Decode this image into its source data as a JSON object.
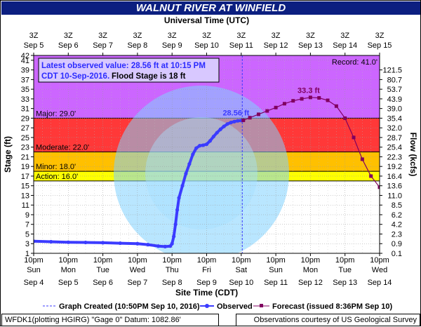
{
  "header": {
    "title": "WALNUT RIVER AT WINFIELD"
  },
  "chart_data": {
    "type": "line",
    "top_axis": {
      "title": "Universal Time (UTC)",
      "ticks": [
        {
          "day": 5,
          "l1": "3Z",
          "l2": "Sep  5"
        },
        {
          "day": 6,
          "l1": "3Z",
          "l2": "Sep  6"
        },
        {
          "day": 7,
          "l1": "3Z",
          "l2": "Sep  7"
        },
        {
          "day": 8,
          "l1": "3Z",
          "l2": "Sep  8"
        },
        {
          "day": 9,
          "l1": "3Z",
          "l2": "Sep  9"
        },
        {
          "day": 10,
          "l1": "3Z",
          "l2": "Sep 10"
        },
        {
          "day": 11,
          "l1": "3Z",
          "l2": "Sep 11"
        },
        {
          "day": 12,
          "l1": "3Z",
          "l2": "Sep 12"
        },
        {
          "day": 13,
          "l1": "3Z",
          "l2": "Sep 13"
        },
        {
          "day": 14,
          "l1": "3Z",
          "l2": "Sep 14"
        },
        {
          "day": 15,
          "l1": "3Z",
          "l2": "Sep 15"
        }
      ]
    },
    "bottom_axis": {
      "title": "Site Time (CDT)",
      "ticks": [
        {
          "day": 5,
          "l1": "10pm",
          "l2": "Sun",
          "l3": "Sep 4"
        },
        {
          "day": 6,
          "l1": "10pm",
          "l2": "Mon",
          "l3": "Sep 5"
        },
        {
          "day": 7,
          "l1": "10pm",
          "l2": "Tue",
          "l3": "Sep 6"
        },
        {
          "day": 8,
          "l1": "10pm",
          "l2": "Wed",
          "l3": "Sep 7"
        },
        {
          "day": 9,
          "l1": "10pm",
          "l2": "Thu",
          "l3": "Sep 8"
        },
        {
          "day": 10,
          "l1": "10pm",
          "l2": "Fri",
          "l3": "Sep 9"
        },
        {
          "day": 11,
          "l1": "10pm",
          "l2": "Sat",
          "l3": "Sep 10"
        },
        {
          "day": 12,
          "l1": "10pm",
          "l2": "Sun",
          "l3": "Sep 11"
        },
        {
          "day": 13,
          "l1": "10pm",
          "l2": "Mon",
          "l3": "Sep 12"
        },
        {
          "day": 14,
          "l1": "10pm",
          "l2": "Tue",
          "l3": "Sep 13"
        },
        {
          "day": 15,
          "l1": "10pm",
          "l2": "Wed",
          "l3": "Sep 14"
        }
      ]
    },
    "x_range": [
      5,
      15
    ],
    "left_axis": {
      "title": "Stage (ft)",
      "range": [
        1,
        42
      ],
      "ticks": [
        1,
        3,
        5,
        7,
        9,
        11,
        13,
        15,
        17,
        19,
        21,
        23,
        25,
        27,
        29,
        31,
        33,
        35,
        37,
        39,
        41,
        42
      ]
    },
    "right_axis": {
      "title": "Flow (kcfs)",
      "ticks": [
        {
          "stage": 1,
          "label": "0.1"
        },
        {
          "stage": 3,
          "label": "0.9"
        },
        {
          "stage": 5,
          "label": "2.3"
        },
        {
          "stage": 7,
          "label": "4.2"
        },
        {
          "stage": 9,
          "label": "6.2"
        },
        {
          "stage": 11,
          "label": "8.5"
        },
        {
          "stage": 13,
          "label": "11.0"
        },
        {
          "stage": 15,
          "label": "13.6"
        },
        {
          "stage": 17,
          "label": "16.4"
        },
        {
          "stage": 19,
          "label": "19.2"
        },
        {
          "stage": 21,
          "label": "22.3"
        },
        {
          "stage": 23,
          "label": "25.4"
        },
        {
          "stage": 25,
          "label": "28.7"
        },
        {
          "stage": 27,
          "label": "32.0"
        },
        {
          "stage": 29,
          "label": "35.4"
        },
        {
          "stage": 31,
          "label": "39.0"
        },
        {
          "stage": 33,
          "label": "43.9"
        },
        {
          "stage": 35,
          "label": "53.7"
        },
        {
          "stage": 37,
          "label": "80.7"
        },
        {
          "stage": 39,
          "label": "121.5"
        }
      ]
    },
    "flood_categories": [
      {
        "name": "action",
        "label": "Action: 16.0'",
        "from": 16,
        "to": 18,
        "color": "#ffff00"
      },
      {
        "name": "minor",
        "label": "Minor: 18.0'",
        "from": 18,
        "to": 22,
        "color": "#ffc000"
      },
      {
        "name": "moderate",
        "label": "Moderate: 22.0'",
        "from": 22,
        "to": 29,
        "color": "#ff3838"
      },
      {
        "name": "major",
        "label": "Major: 29.0'",
        "from": 29,
        "to": 42,
        "color": "#cc66ff"
      }
    ],
    "record": {
      "label": "Record: 41.0'",
      "stage": 41
    },
    "observed": {
      "name": "Observed",
      "color": "#3b3bff",
      "x": [
        5.0,
        5.5,
        6.0,
        6.5,
        7.0,
        7.5,
        8.0,
        8.3,
        8.6,
        8.8,
        8.95,
        9.0,
        9.05,
        9.1,
        9.15,
        9.2,
        9.3,
        9.4,
        9.5,
        9.6,
        9.7,
        9.8,
        9.9,
        10.0,
        10.1,
        10.2,
        10.3,
        10.4,
        10.5,
        10.6,
        10.7,
        10.8,
        10.9,
        11.0,
        11.06
      ],
      "y": [
        3.5,
        3.4,
        3.3,
        3.25,
        3.2,
        3.1,
        3.0,
        2.8,
        2.5,
        2.4,
        2.5,
        3.0,
        4.5,
        7.0,
        10.0,
        12.5,
        15.0,
        17.5,
        19.5,
        21.5,
        22.8,
        23.3,
        23.4,
        23.6,
        24.3,
        25.2,
        26.0,
        26.7,
        27.3,
        27.8,
        28.1,
        28.3,
        28.45,
        28.52,
        28.56
      ]
    },
    "forecast": {
      "name": "Forecast (issued 8:36PM Sep 10)",
      "color": "#800060",
      "x": [
        11.06,
        11.25,
        11.5,
        11.75,
        12.0,
        12.25,
        12.5,
        12.75,
        13.0,
        13.25,
        13.5,
        13.75,
        14.0,
        14.25,
        14.5,
        14.75,
        15.0
      ],
      "y": [
        28.56,
        29.1,
        29.8,
        30.5,
        31.2,
        32.0,
        32.6,
        33.0,
        33.3,
        33.2,
        32.7,
        31.5,
        29.0,
        25.0,
        20.5,
        17.0,
        14.7
      ]
    },
    "graph_created": {
      "x": 11.03,
      "label": "Graph Created (10:50PM Sep 10, 2016)"
    },
    "latest": {
      "line1": "Latest observed value: 28.56 ft at 10:15 PM",
      "line2a": "CDT 10-Sep-2016.",
      "line2b": "Flood Stage is 18 ft"
    },
    "annotations": [
      {
        "text": "28.56 ft",
        "x": 10.85,
        "y": 29.6,
        "color": "#3b3bff"
      },
      {
        "text": "33.3 ft",
        "x": 12.95,
        "y": 34.2,
        "color": "#800060"
      }
    ]
  },
  "legend": {
    "graph_created": "Graph Created (10:50PM Sep 10, 2016)",
    "observed": "Observed",
    "forecast": "Forecast (issued 8:36PM Sep 10)"
  },
  "footer": {
    "left": "WFDK1(plotting HGIRG) \"Gage 0\" Datum: 1082.86'",
    "right": "Observations courtesy of US Geological Survey"
  }
}
